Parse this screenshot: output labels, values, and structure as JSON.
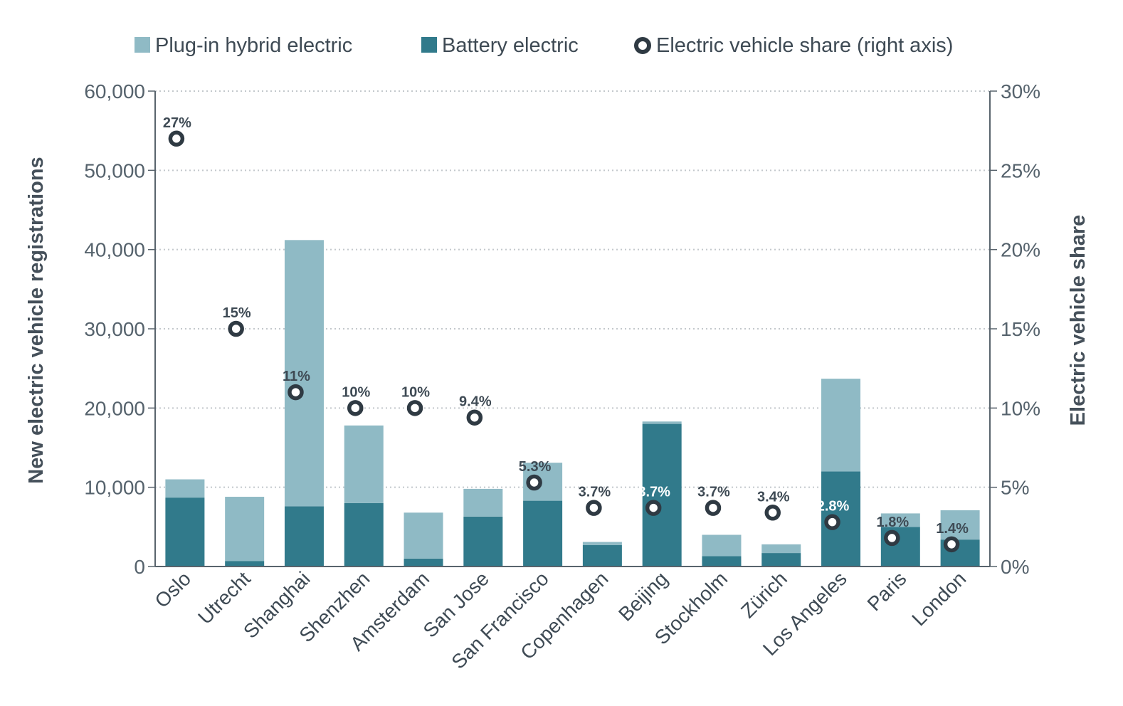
{
  "colors": {
    "plugin": "#8fbac5",
    "battery": "#317a8b",
    "marker": "#2f3a43",
    "grid": "#c3c8cc",
    "axis": "#59646d"
  },
  "legend": {
    "plugin": "Plug-in hybrid electric",
    "battery": "Battery electric",
    "share": "Electric vehicle share (right axis)"
  },
  "chart_data": {
    "type": "bar",
    "stacked": true,
    "title": "",
    "xlabel": "",
    "ylabel": "New electric vehicle registrations",
    "y2label": "Electric vehicle share",
    "ylim": [
      0,
      60000
    ],
    "y2lim": [
      0,
      30
    ],
    "yticks": [
      "0",
      "10,000",
      "20,000",
      "30,000",
      "40,000",
      "50,000",
      "60,000"
    ],
    "y2ticks": [
      "0%",
      "5%",
      "10%",
      "15%",
      "20%",
      "25%",
      "30%"
    ],
    "grid": true,
    "legend_position": "top",
    "categories": [
      "Oslo",
      "Utrecht",
      "Shanghai",
      "Shenzhen",
      "Amsterdam",
      "San Jose",
      "San Francisco",
      "Copenhagen",
      "Beijing",
      "Stockholm",
      "Zürich",
      "Los Angeles",
      "Paris",
      "London"
    ],
    "series": [
      {
        "name": "Battery electric",
        "type": "bar",
        "values": [
          8700,
          700,
          7600,
          8000,
          1000,
          6300,
          8300,
          2700,
          18000,
          1300,
          1700,
          12000,
          5000,
          3400
        ]
      },
      {
        "name": "Plug-in hybrid electric",
        "type": "bar",
        "values": [
          2300,
          8100,
          33600,
          9800,
          5800,
          3500,
          4800,
          400,
          300,
          2700,
          1100,
          11700,
          1700,
          3700
        ]
      },
      {
        "name": "Electric vehicle share (right axis)",
        "type": "scatter",
        "axis": "right",
        "values": [
          27,
          15,
          11,
          10,
          10,
          9.4,
          5.3,
          3.7,
          3.7,
          3.7,
          3.4,
          2.8,
          1.8,
          1.4
        ]
      }
    ],
    "share_labels": [
      "27%",
      "15%",
      "11%",
      "10%",
      "10%",
      "9.4%",
      "5.3%",
      "3.7%",
      "3.7%",
      "3.7%",
      "3.4%",
      "2.8%",
      "1.8%",
      "1.4%"
    ]
  }
}
